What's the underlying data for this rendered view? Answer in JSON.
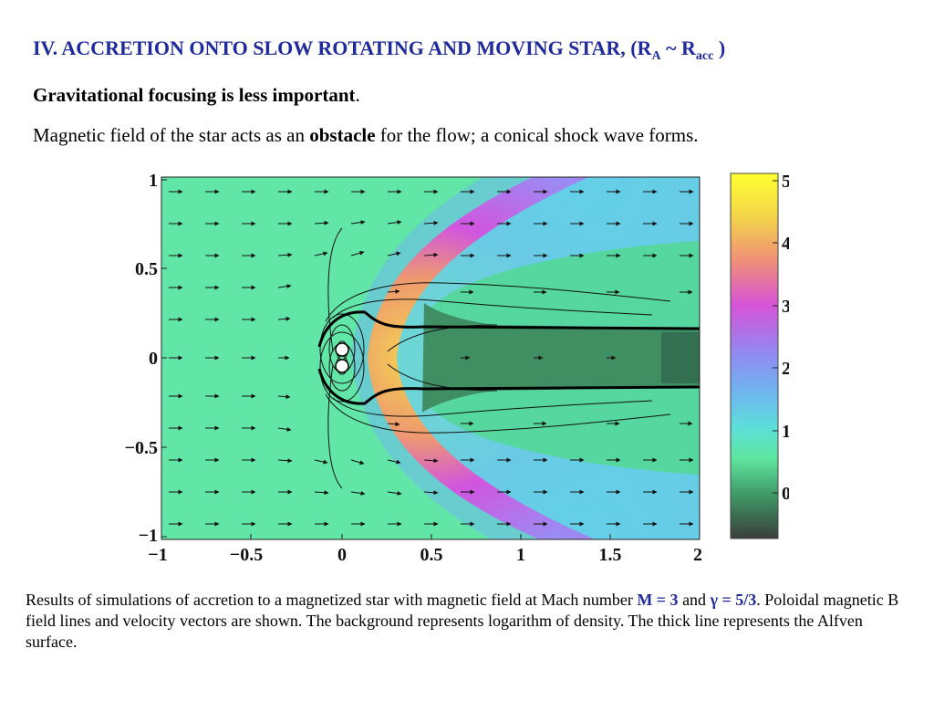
{
  "slide": {
    "title": "IV. ACCRETION ONTO SLOW ROTATING AND MOVING STAR, (R",
    "title_sub1": "A",
    "title_mid": " ~ R",
    "title_sub2": "acc",
    "title_end": " )",
    "subtitle_bold": "Gravitational focusing is less important",
    "subtitle_end": ".",
    "line3_pre": "Magnetic field of the star acts as an ",
    "line3_bold": "obstacle",
    "line3_post": " for the flow; a conical shock wave forms."
  },
  "figure": {
    "x_ticks": [
      "−1",
      "−0.5",
      "0",
      "0.5",
      "1",
      "1.5",
      "2"
    ],
    "y_ticks": [
      "1",
      "0.5",
      "0",
      "−0.5",
      "−1"
    ],
    "colorbar_ticks": [
      "5",
      "4",
      "3",
      "2",
      "1",
      "0"
    ],
    "colors": {
      "background_flow": "#62e6a8",
      "shock_magenta": "#c84de3",
      "shock_blue": "#8a9cf4",
      "cyan": "#5cd8e8",
      "front_yellow": "#f2d54a",
      "front_orange": "#ef9670",
      "wake_green": "#3f8f63",
      "wake_dark": "#2f6a4a"
    }
  },
  "caption": {
    "pre": "Results of simulations of accretion to a magnetized star with magnetic field at Mach number ",
    "mach": "M = 3",
    "and": " and ",
    "gamma": "γ = 5/3",
    "post": ". Poloidal magnetic B field lines and velocity vectors are shown. The background represents logarithm of density. The thick line represents the Alfven surface."
  }
}
